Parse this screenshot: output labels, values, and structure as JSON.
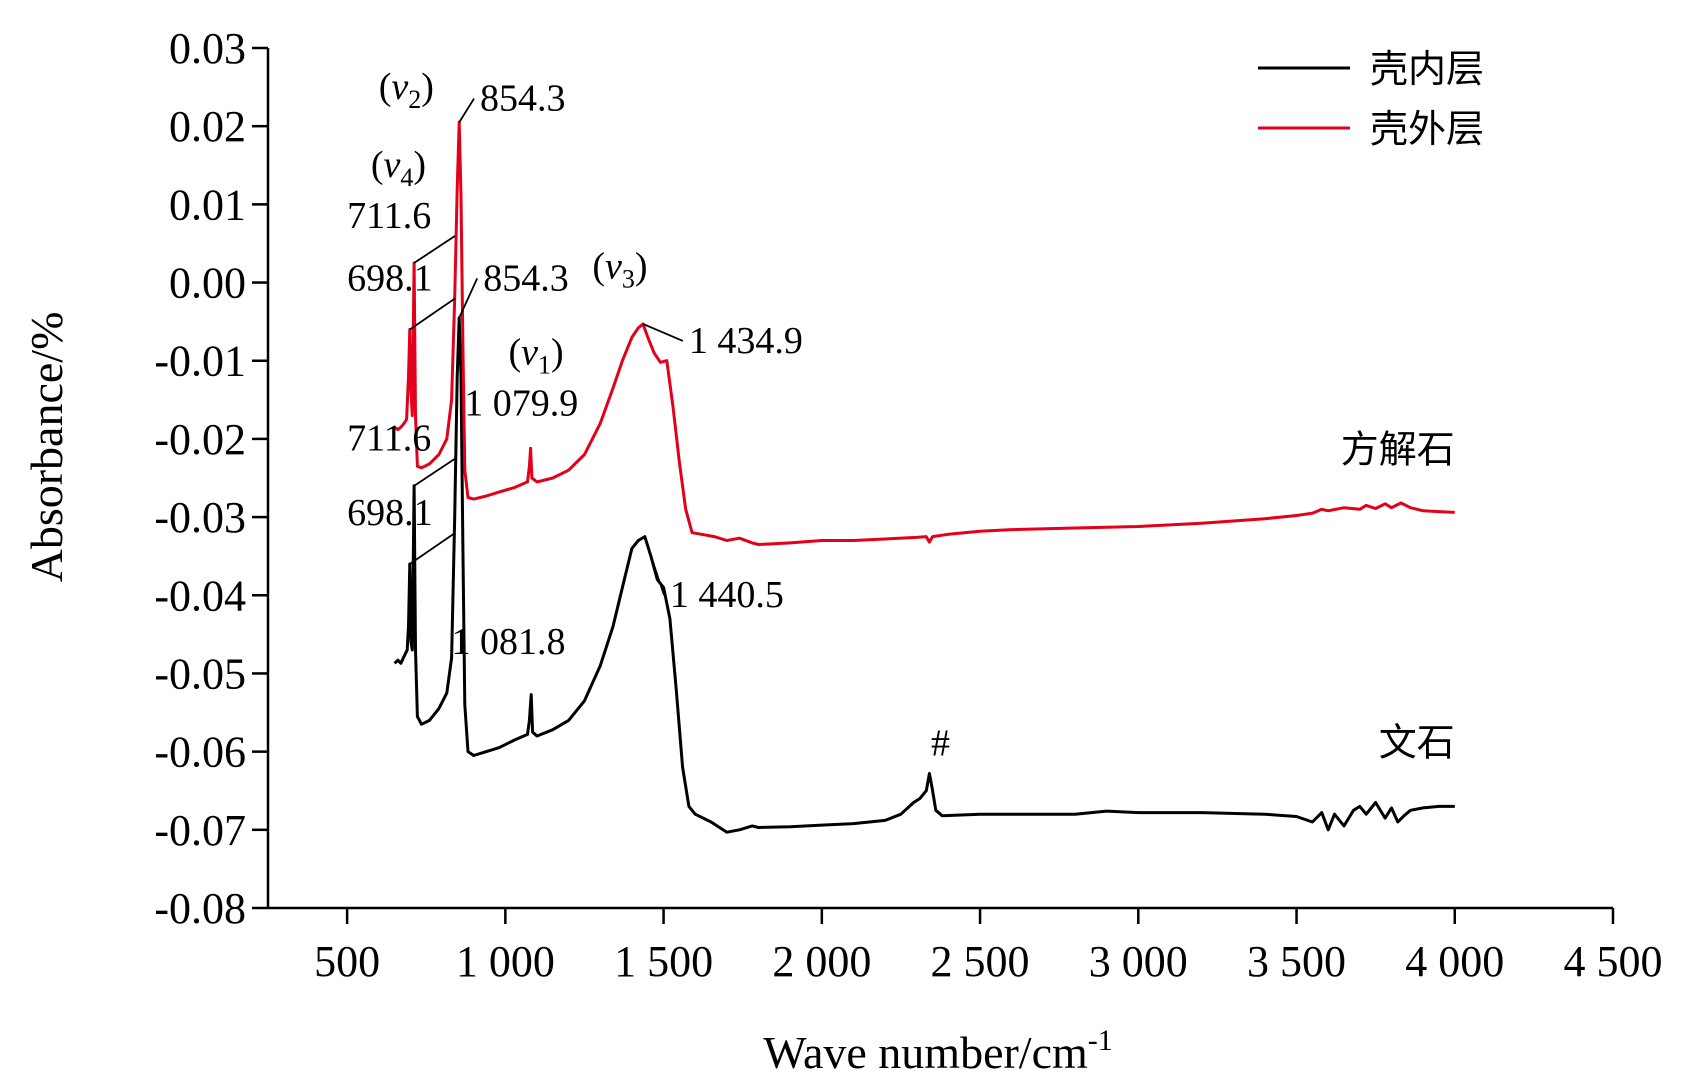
{
  "chart_data": {
    "type": "line",
    "xlabel": "Wave number/cm",
    "xlabel_sup": "-1",
    "ylabel": "Absorbance/%",
    "xlim": [
      250,
      4500
    ],
    "ylim": [
      -0.08,
      0.03
    ],
    "x_ticks": [
      500,
      1000,
      1500,
      2000,
      2500,
      3000,
      3500,
      4000,
      4500
    ],
    "x_tick_labels": [
      "500",
      "1 000",
      "1 500",
      "2 000",
      "2 500",
      "3 000",
      "3 500",
      "4 000",
      "4 500"
    ],
    "y_ticks": [
      0.03,
      0.02,
      0.01,
      0.0,
      -0.01,
      -0.02,
      -0.03,
      -0.04,
      -0.05,
      -0.06,
      -0.07,
      -0.08
    ],
    "y_tick_labels": [
      "0.03",
      "0.02",
      "0.01",
      "0.00",
      "-0.01",
      "-0.02",
      "-0.03",
      "-0.04",
      "-0.05",
      "-0.06",
      "-0.07",
      "-0.08"
    ],
    "grid": false,
    "legend_position": "top-right",
    "series": [
      {
        "name": "壳内层",
        "color": "#000000",
        "curve_label": "文石",
        "points": [
          [
            650,
            -0.0487
          ],
          [
            660,
            -0.0483
          ],
          [
            670,
            -0.0487
          ],
          [
            680,
            -0.0478
          ],
          [
            690,
            -0.047
          ],
          [
            694,
            -0.044
          ],
          [
            698.1,
            -0.036
          ],
          [
            702,
            -0.046
          ],
          [
            706,
            -0.047
          ],
          [
            711.6,
            -0.026
          ],
          [
            716,
            -0.047
          ],
          [
            722,
            -0.0555
          ],
          [
            735,
            -0.0565
          ],
          [
            760,
            -0.056
          ],
          [
            790,
            -0.0545
          ],
          [
            815,
            -0.0525
          ],
          [
            830,
            -0.048
          ],
          [
            840,
            -0.03
          ],
          [
            848,
            -0.012
          ],
          [
            854.3,
            -0.0045
          ],
          [
            860,
            -0.012
          ],
          [
            866,
            -0.034
          ],
          [
            872,
            -0.054
          ],
          [
            882,
            -0.06
          ],
          [
            900,
            -0.0605
          ],
          [
            940,
            -0.06
          ],
          [
            980,
            -0.0595
          ],
          [
            1030,
            -0.0585
          ],
          [
            1070,
            -0.0578
          ],
          [
            1076,
            -0.056
          ],
          [
            1081.8,
            -0.0527
          ],
          [
            1086,
            -0.0575
          ],
          [
            1100,
            -0.058
          ],
          [
            1150,
            -0.0572
          ],
          [
            1200,
            -0.056
          ],
          [
            1250,
            -0.0535
          ],
          [
            1300,
            -0.049
          ],
          [
            1340,
            -0.044
          ],
          [
            1370,
            -0.039
          ],
          [
            1400,
            -0.034
          ],
          [
            1420,
            -0.033
          ],
          [
            1440.5,
            -0.0325
          ],
          [
            1460,
            -0.035
          ],
          [
            1480,
            -0.038
          ],
          [
            1500,
            -0.039
          ],
          [
            1520,
            -0.043
          ],
          [
            1540,
            -0.052
          ],
          [
            1560,
            -0.062
          ],
          [
            1580,
            -0.067
          ],
          [
            1600,
            -0.068
          ],
          [
            1650,
            -0.069
          ],
          [
            1700,
            -0.0703
          ],
          [
            1740,
            -0.07
          ],
          [
            1780,
            -0.0695
          ],
          [
            1800,
            -0.0697
          ],
          [
            1900,
            -0.0696
          ],
          [
            2000,
            -0.0694
          ],
          [
            2100,
            -0.0692
          ],
          [
            2200,
            -0.0688
          ],
          [
            2250,
            -0.068
          ],
          [
            2290,
            -0.0665
          ],
          [
            2310,
            -0.066
          ],
          [
            2330,
            -0.065
          ],
          [
            2340,
            -0.0628
          ],
          [
            2350,
            -0.065
          ],
          [
            2360,
            -0.0675
          ],
          [
            2380,
            -0.0682
          ],
          [
            2500,
            -0.068
          ],
          [
            2600,
            -0.068
          ],
          [
            2800,
            -0.068
          ],
          [
            2900,
            -0.0676
          ],
          [
            3000,
            -0.0678
          ],
          [
            3200,
            -0.0678
          ],
          [
            3400,
            -0.068
          ],
          [
            3500,
            -0.0683
          ],
          [
            3550,
            -0.069
          ],
          [
            3580,
            -0.0678
          ],
          [
            3600,
            -0.07
          ],
          [
            3620,
            -0.068
          ],
          [
            3650,
            -0.0695
          ],
          [
            3680,
            -0.0675
          ],
          [
            3700,
            -0.067
          ],
          [
            3720,
            -0.068
          ],
          [
            3750,
            -0.0665
          ],
          [
            3780,
            -0.0685
          ],
          [
            3800,
            -0.0672
          ],
          [
            3820,
            -0.069
          ],
          [
            3840,
            -0.0682
          ],
          [
            3860,
            -0.0675
          ],
          [
            3900,
            -0.0672
          ],
          [
            3950,
            -0.067
          ],
          [
            4000,
            -0.067
          ]
        ]
      },
      {
        "name": "壳外层",
        "color": "#e2001a",
        "curve_label": "方解石",
        "points": [
          [
            650,
            -0.0185
          ],
          [
            660,
            -0.0188
          ],
          [
            670,
            -0.0185
          ],
          [
            680,
            -0.018
          ],
          [
            688,
            -0.0175
          ],
          [
            694,
            -0.012
          ],
          [
            698.1,
            -0.006
          ],
          [
            702,
            -0.014
          ],
          [
            706,
            -0.017
          ],
          [
            711.6,
            0.0025
          ],
          [
            716,
            -0.017
          ],
          [
            722,
            -0.0235
          ],
          [
            735,
            -0.0237
          ],
          [
            760,
            -0.0232
          ],
          [
            790,
            -0.022
          ],
          [
            815,
            -0.02
          ],
          [
            830,
            -0.015
          ],
          [
            840,
            -0.002
          ],
          [
            848,
            0.012
          ],
          [
            854.3,
            0.0205
          ],
          [
            860,
            0.011
          ],
          [
            866,
            -0.008
          ],
          [
            872,
            -0.024
          ],
          [
            882,
            -0.0275
          ],
          [
            900,
            -0.0277
          ],
          [
            940,
            -0.0273
          ],
          [
            980,
            -0.0268
          ],
          [
            1030,
            -0.0262
          ],
          [
            1070,
            -0.0255
          ],
          [
            1076,
            -0.0235
          ],
          [
            1079.9,
            -0.0212
          ],
          [
            1084,
            -0.025
          ],
          [
            1100,
            -0.0255
          ],
          [
            1150,
            -0.025
          ],
          [
            1200,
            -0.024
          ],
          [
            1250,
            -0.022
          ],
          [
            1300,
            -0.018
          ],
          [
            1340,
            -0.0135
          ],
          [
            1370,
            -0.01
          ],
          [
            1400,
            -0.007
          ],
          [
            1420,
            -0.0058
          ],
          [
            1434.9,
            -0.0053
          ],
          [
            1450,
            -0.007
          ],
          [
            1470,
            -0.009
          ],
          [
            1490,
            -0.0102
          ],
          [
            1510,
            -0.01
          ],
          [
            1530,
            -0.016
          ],
          [
            1550,
            -0.023
          ],
          [
            1570,
            -0.029
          ],
          [
            1590,
            -0.032
          ],
          [
            1620,
            -0.0322
          ],
          [
            1660,
            -0.0325
          ],
          [
            1700,
            -0.033
          ],
          [
            1740,
            -0.0327
          ],
          [
            1780,
            -0.0333
          ],
          [
            1800,
            -0.0335
          ],
          [
            1900,
            -0.0333
          ],
          [
            2000,
            -0.033
          ],
          [
            2100,
            -0.033
          ],
          [
            2200,
            -0.0328
          ],
          [
            2300,
            -0.0326
          ],
          [
            2330,
            -0.0325
          ],
          [
            2340,
            -0.0332
          ],
          [
            2350,
            -0.0325
          ],
          [
            2400,
            -0.0322
          ],
          [
            2500,
            -0.0318
          ],
          [
            2600,
            -0.0316
          ],
          [
            2800,
            -0.0314
          ],
          [
            3000,
            -0.0312
          ],
          [
            3200,
            -0.0308
          ],
          [
            3400,
            -0.0302
          ],
          [
            3500,
            -0.0298
          ],
          [
            3550,
            -0.0295
          ],
          [
            3580,
            -0.029
          ],
          [
            3600,
            -0.0292
          ],
          [
            3650,
            -0.0288
          ],
          [
            3700,
            -0.029
          ],
          [
            3720,
            -0.0285
          ],
          [
            3750,
            -0.0289
          ],
          [
            3780,
            -0.0283
          ],
          [
            3800,
            -0.0288
          ],
          [
            3830,
            -0.0282
          ],
          [
            3860,
            -0.0288
          ],
          [
            3900,
            -0.0292
          ],
          [
            3950,
            -0.0293
          ],
          [
            4000,
            -0.0294
          ]
        ]
      }
    ],
    "curve_labels": [
      {
        "text": "方解石",
        "x": 4000,
        "y": -0.023,
        "series": 1
      },
      {
        "text": "文石",
        "x": 4000,
        "y": -0.0605,
        "series": 0
      }
    ],
    "annotations": [
      {
        "text": "711.6",
        "x": 500,
        "y": 0.007,
        "line_to": [
          711.6,
          0.0025
        ]
      },
      {
        "text": "698.1",
        "x": 500,
        "y": -0.001,
        "line_to": [
          698.1,
          -0.006
        ]
      },
      {
        "text": "854.3",
        "x": 920,
        "y": 0.022,
        "line_to": [
          854.3,
          0.0205
        ]
      },
      {
        "text": "854.3",
        "x": 930,
        "y": -0.001,
        "line_to": [
          854.3,
          -0.0045
        ]
      },
      {
        "text": "1 079.9",
        "x": 870,
        "y": -0.017
      },
      {
        "text": "1 434.9",
        "x": 1580,
        "y": -0.009,
        "line_to": [
          1434.9,
          -0.0053
        ]
      },
      {
        "text": "711.6",
        "x": 500,
        "y": -0.0215,
        "line_to": [
          711.6,
          -0.026
        ]
      },
      {
        "text": "698.1",
        "x": 500,
        "y": -0.031,
        "line_to": [
          698.1,
          -0.036
        ]
      },
      {
        "text": "1 081.8",
        "x": 830,
        "y": -0.0475
      },
      {
        "text": "1 440.5",
        "x": 1520,
        "y": -0.0415,
        "line_to": [
          1440.5,
          -0.0325
        ]
      },
      {
        "text": "#",
        "x": 2345,
        "y": -0.0605
      }
    ],
    "band_labels": [
      {
        "base": "v",
        "sub": "2",
        "x": 600,
        "y": 0.0235
      },
      {
        "base": "v",
        "sub": "4",
        "x": 575,
        "y": 0.0135
      },
      {
        "base": "v",
        "sub": "1",
        "x": 1010,
        "y": -0.0105
      },
      {
        "base": "v",
        "sub": "3",
        "x": 1275,
        "y": 0.0005
      }
    ]
  }
}
